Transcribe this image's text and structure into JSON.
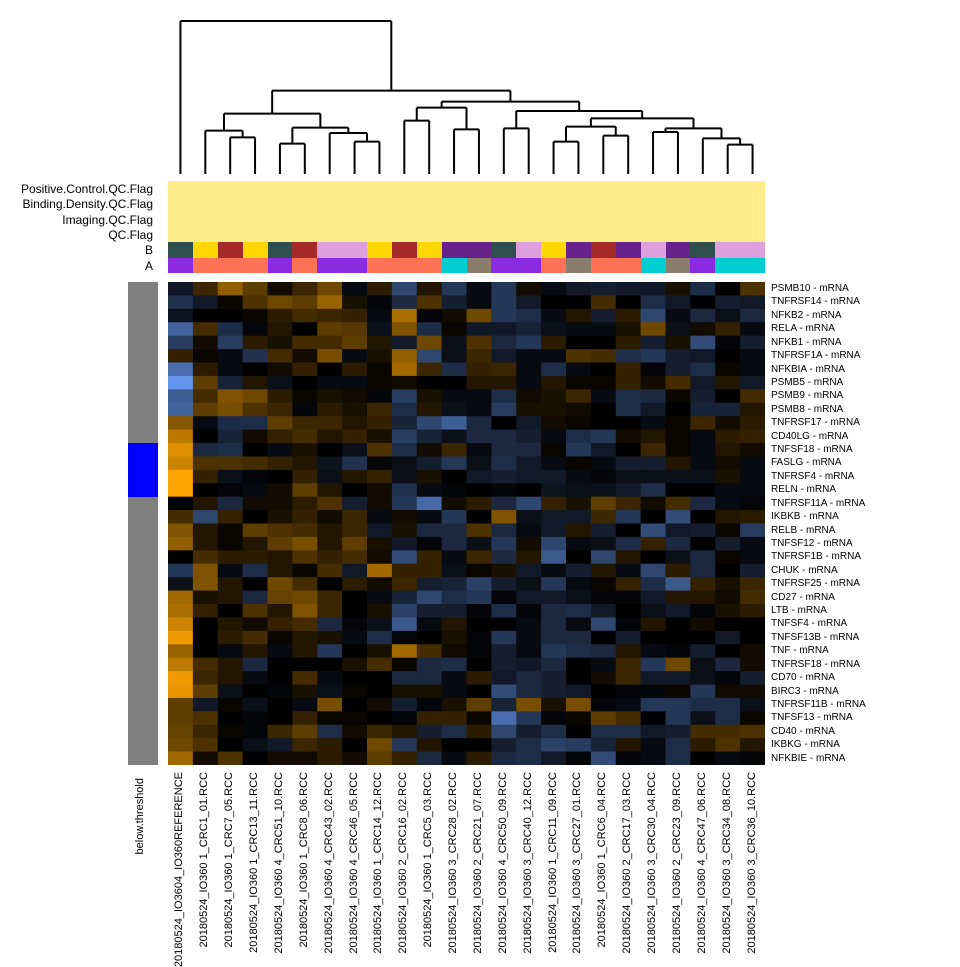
{
  "chart_data": {
    "type": "heatmap",
    "color_scale": {
      "low": "#6495ED",
      "mid": "#000000",
      "high": "#FFA500",
      "range": [
        -3,
        3
      ]
    },
    "columns": [
      "20180524_IO3604_IO360REFERENCE",
      "20180524_IO360 1_CRC1_01.RCC",
      "20180524_IO360 1_CRC7_05.RCC",
      "20180524_IO360 1_CRC13_11.RCC",
      "20180524_IO360 4_CRC51_10.RCC",
      "20180524_IO360 1_CRC8_06.RCC",
      "20180524_IO360 4_CRC43_02.RCC",
      "20180524_IO360 4_CRC46_05.RCC",
      "20180524_IO360 1_CRC14_12.RCC",
      "20180524_IO360 2_CRC16_02.RCC",
      "20180524_IO360 1_CRC5_03.RCC",
      "20180524_IO360 3_CRC28_02.RCC",
      "20180524_IO360 2_CRC21_07.RCC",
      "20180524_IO360 4_CRC50_09.RCC",
      "20180524_IO360 3_CRC40_12.RCC",
      "20180524_IO360 1_CRC11_09.RCC",
      "20180524_IO360 3_CRC27_01.RCC",
      "20180524_IO360 1_CRC6_04.RCC",
      "20180524_IO360 2_CRC17_03.RCC",
      "20180524_IO360 3_CRC30_04.RCC",
      "20180524_IO360 2_CRC23_09.RCC",
      "20180524_IO360 4_CRC47_06.RCC",
      "20180524_IO360 3_CRC34_08.RCC",
      "20180524_IO360 3_CRC36_10.RCC"
    ],
    "rows": [
      "PSMB10 - mRNA",
      "TNFRSF14 - mRNA",
      "NFKB2 - mRNA",
      "RELA - mRNA",
      "NFKB1 - mRNA",
      "TNFRSF1A - mRNA",
      "NFKBIA - mRNA",
      "PSMB5 - mRNA",
      "PSMB9 - mRNA",
      "PSMB8 - mRNA",
      "TNFRSF17 - mRNA",
      "CD40LG - mRNA",
      "TNFSF18 - mRNA",
      "FASLG - mRNA",
      "TNFRSF4 - mRNA",
      "RELN - mRNA",
      "TNFRSF11A - mRNA",
      "IKBKB - mRNA",
      "RELB - mRNA",
      "TNFSF12 - mRNA",
      "TNFRSF1B - mRNA",
      "CHUK - mRNA",
      "TNFRSF25 - mRNA",
      "CD27 - mRNA",
      "LTB - mRNA",
      "TNFSF4 - mRNA",
      "TNFSF13B - mRNA",
      "TNF - mRNA",
      "TNFRSF18 - mRNA",
      "CD70 - mRNA",
      "BIRC3 - mRNA",
      "TNFRSF11B - mRNA",
      "TNFSF13 - mRNA",
      "CD40 - mRNA",
      "IKBKG - mRNA",
      "NFKBIE - mRNA"
    ],
    "values": [
      [
        -0.5,
        0.7,
        1.7,
        1.1,
        0.2,
        0.7,
        1.3,
        -0.2,
        0.5,
        -1.4,
        0.4,
        -1.1,
        -0.2,
        -1.1,
        0.2,
        -0.2,
        -0.5,
        -0.6,
        -0.5,
        -0.5,
        0.3,
        -0.9,
        0,
        0.9
      ],
      [
        -1.0,
        -0.5,
        0.1,
        0.9,
        1.3,
        1.1,
        1.8,
        0.3,
        -0.1,
        -0.8,
        0.9,
        -0.6,
        -0.2,
        -1.1,
        -0.5,
        0,
        0,
        0.8,
        0,
        -0.9,
        -0.5,
        0,
        -0.6,
        -0.5
      ],
      [
        -0.4,
        0,
        0,
        0.1,
        0.5,
        0.8,
        0.7,
        0.6,
        -0.2,
        2.0,
        -0.1,
        0.2,
        1.3,
        -1.1,
        -0.9,
        -0.2,
        0.4,
        -0.6,
        0.5,
        -1.4,
        -0.2,
        -0.8,
        -0.3,
        -0.8
      ],
      [
        -2.0,
        0.8,
        -0.9,
        -0.1,
        0.4,
        0,
        1.1,
        1.0,
        -0.3,
        1.5,
        -0.9,
        0.1,
        -0.5,
        -0.5,
        -0.7,
        -0.3,
        -0.2,
        -0.2,
        0.3,
        1.3,
        -0.3,
        0.2,
        0.6,
        -0.2
      ],
      [
        -1.2,
        0.2,
        -1.2,
        0.5,
        0.3,
        0.8,
        0.8,
        1.1,
        0.4,
        -0.5,
        1.3,
        -0.3,
        0.9,
        -0.8,
        -1.1,
        0.5,
        0,
        0,
        0.5,
        -0.6,
        0.3,
        -1.5,
        -0.1,
        -0.6
      ],
      [
        0.6,
        0.1,
        -0.2,
        -1.0,
        0.8,
        0.2,
        1.4,
        -0.2,
        0.3,
        1.7,
        -1.4,
        -0.3,
        0.7,
        -0.5,
        -0.2,
        -0.2,
        0.9,
        0.8,
        -0.9,
        -1.1,
        -0.6,
        -0.5,
        0,
        -0.2
      ],
      [
        -2.2,
        0.5,
        -0.2,
        0,
        0.2,
        0.6,
        0,
        0.5,
        0.1,
        1.9,
        0.7,
        -0.9,
        0.6,
        0.7,
        -0.2,
        -0.9,
        -0.2,
        0,
        0.6,
        -0.1,
        -0.6,
        -0.9,
        0.1,
        -0.2
      ],
      [
        -3.0,
        1.1,
        -0.7,
        0.4,
        -0.3,
        0,
        -0.2,
        -0.2,
        0.1,
        0.2,
        0,
        0,
        0.4,
        0.4,
        -0.2,
        0.4,
        0.1,
        0.1,
        0.6,
        0.2,
        0.8,
        -0.5,
        0.4,
        -0.5
      ],
      [
        -1.9,
        0.8,
        1.5,
        1.3,
        0.5,
        0.1,
        0.3,
        0.2,
        -0.1,
        -1.2,
        0.3,
        -0.2,
        -0.2,
        -0.9,
        0.2,
        0.3,
        0.7,
        -0.2,
        -0.9,
        -0.8,
        0.1,
        -0.6,
        0,
        0.8
      ],
      [
        -2.0,
        1.1,
        1.4,
        0.9,
        0.7,
        -0.1,
        0.5,
        0.3,
        0.7,
        -0.9,
        0.4,
        -0.3,
        -0.2,
        -1.2,
        0.3,
        0.3,
        0.2,
        0,
        -0.9,
        -0.5,
        0,
        -0.7,
        -0.7,
        0.4
      ],
      [
        1.6,
        -0.2,
        -0.9,
        -0.9,
        1.1,
        0.7,
        0.7,
        0.4,
        0.6,
        -0.7,
        -1.4,
        -1.9,
        -0.8,
        0,
        -0.5,
        0.2,
        0.1,
        0,
        0,
        -0.2,
        0.1,
        0.7,
        0.2,
        0.5
      ],
      [
        2.2,
        0,
        -0.7,
        0.2,
        0.6,
        0.8,
        0.4,
        0.6,
        0.3,
        -1.2,
        -0.7,
        -0.3,
        -0.8,
        -0.8,
        -0.6,
        -0.2,
        -0.9,
        -1.1,
        0.2,
        0.4,
        0.1,
        -0.2,
        0.5,
        0.6
      ],
      [
        2.6,
        -0.8,
        -0.9,
        0,
        -0.2,
        0.3,
        0,
        -0.3,
        0.9,
        -0.9,
        0.2,
        0.7,
        -0.2,
        -0.8,
        -0.8,
        0.1,
        -1.1,
        -0.5,
        0,
        0.7,
        0.1,
        -0.2,
        0.4,
        0.2
      ],
      [
        2.4,
        0.9,
        0.9,
        0.8,
        0.6,
        0.4,
        -0.4,
        -1.0,
        -0.1,
        -0.3,
        -0.6,
        -1.1,
        -0.3,
        -0.9,
        -0.5,
        -0.2,
        0.1,
        -0.2,
        -0.6,
        -0.6,
        0.4,
        -0.2,
        0.2,
        -0.2
      ],
      [
        3.0,
        0.6,
        -0.3,
        -0.1,
        0,
        0.6,
        -0.3,
        0.4,
        0.6,
        -0.3,
        0.3,
        0,
        -0.5,
        -0.6,
        -0.5,
        -0.5,
        -0.2,
        -0.1,
        -0.3,
        -0.3,
        -0.3,
        -0.3,
        0.3,
        -0.2
      ],
      [
        3.0,
        0,
        -0.1,
        -0.2,
        0.2,
        1.1,
        0.4,
        0,
        0.2,
        -1.0,
        -0.2,
        -0.1,
        0,
        -0.1,
        0,
        -0.4,
        -0.3,
        -0.3,
        -0.5,
        -0.9,
        0,
        0,
        -0.2,
        -0.2
      ],
      [
        0,
        0.4,
        -0.8,
        0.2,
        0.2,
        0.5,
        0.9,
        -0.6,
        0.2,
        -1.1,
        -2.1,
        0.2,
        0.5,
        -0.8,
        -1.4,
        0.6,
        0.3,
        1.1,
        0.7,
        0.2,
        0.8,
        -0.8,
        -0.2,
        -0.1
      ],
      [
        0.8,
        -1.4,
        0.6,
        0,
        0.3,
        0.6,
        0.2,
        0.7,
        -0.2,
        0.2,
        -0.2,
        -1.1,
        0,
        1.5,
        -0.3,
        -0.5,
        -0.5,
        0.7,
        -1.1,
        0,
        -1.5,
        0,
        0.4,
        0.5
      ],
      [
        1.5,
        0.4,
        0.1,
        1.1,
        0.9,
        0.8,
        0.4,
        0.7,
        -0.5,
        0.3,
        -0.8,
        -0.8,
        0.9,
        -0.8,
        -0.2,
        -0.5,
        0.4,
        -0.6,
        0,
        -1.5,
        -0.5,
        -0.6,
        0.1,
        -1.2
      ],
      [
        1.7,
        0.4,
        0.1,
        0.4,
        1.1,
        1.4,
        0.4,
        1.1,
        0.3,
        -0.5,
        -0.1,
        -0.8,
        -0.3,
        -1.1,
        0.2,
        -1.4,
        -0.2,
        -0.3,
        -0.9,
        0.6,
        -0.8,
        0,
        -0.6,
        -0.2
      ],
      [
        0,
        0.8,
        0.5,
        0.5,
        0.4,
        0.9,
        0.6,
        0.8,
        0.2,
        -1.5,
        0.6,
        -0.2,
        0.7,
        -0.8,
        0.4,
        -1.8,
        0,
        -1.4,
        0.4,
        0,
        -0.3,
        -0.8,
        0.1,
        -0.2
      ],
      [
        -1.1,
        1.5,
        -0.2,
        -0.9,
        0.4,
        0.1,
        0.8,
        -0.5,
        1.9,
        0.6,
        0.6,
        -0.3,
        0.1,
        0.3,
        -0.5,
        -0.2,
        -0.6,
        0.4,
        -0.2,
        -1.4,
        0.5,
        -0.8,
        0,
        -0.6
      ],
      [
        -0.3,
        1.5,
        0.4,
        0,
        1.3,
        0.8,
        0,
        0.5,
        0.2,
        0.7,
        -0.6,
        -0.7,
        -1.3,
        -0.6,
        -0.3,
        -1.1,
        -0.2,
        0.1,
        0.6,
        -0.9,
        -1.8,
        0.6,
        0.3,
        0.7
      ],
      [
        1.9,
        0.3,
        0.4,
        -0.8,
        1.2,
        1.3,
        0.7,
        0,
        -0.2,
        -0.7,
        -1.4,
        -0.9,
        -1.1,
        -0.1,
        -0.5,
        -0.5,
        -0.3,
        -0.1,
        -0.1,
        -0.5,
        0.4,
        0.4,
        0.2,
        0.8
      ],
      [
        2.0,
        0.6,
        0,
        0.9,
        0.4,
        1.5,
        0.7,
        0,
        0.3,
        -1.3,
        -0.6,
        -0.6,
        -0.1,
        -0.9,
        -0.1,
        -0.8,
        -0.9,
        -0.5,
        0,
        -0.3,
        -0.5,
        -0.1,
        0.3,
        0.5
      ],
      [
        2.4,
        0,
        0.4,
        0.2,
        0.6,
        0.8,
        -0.8,
        -0.1,
        -0.3,
        -1.8,
        -0.2,
        0.4,
        0,
        0,
        -0.2,
        -0.8,
        -0.2,
        -1.4,
        -0.1,
        0.4,
        0,
        0.2,
        0,
        0
      ],
      [
        2.8,
        0,
        0.5,
        0.8,
        0.1,
        0.4,
        0.3,
        -0.2,
        -0.9,
        -0.1,
        0,
        0.3,
        -0.1,
        -1.1,
        -0.2,
        -0.8,
        -0.8,
        0,
        -0.6,
        0,
        0,
        0,
        -0.5,
        0
      ],
      [
        1.8,
        0,
        -0.2,
        0.4,
        -0.2,
        0.4,
        -1.1,
        0,
        0.3,
        1.9,
        0.8,
        0.2,
        -0.1,
        -0.6,
        -0.2,
        -1.1,
        -0.9,
        -0.8,
        0.4,
        -0.2,
        -0.1,
        -0.6,
        0,
        0.2
      ],
      [
        2.2,
        0.8,
        0.4,
        -0.8,
        0,
        0,
        0,
        0.3,
        0.8,
        0.1,
        -0.8,
        -0.9,
        0,
        -0.6,
        -0.5,
        -0.8,
        0,
        -0.2,
        0.7,
        -1.1,
        1.3,
        -0.3,
        -0.8,
        0.2
      ],
      [
        2.8,
        0.7,
        0.4,
        -0.2,
        0,
        0.8,
        -0.2,
        0,
        0,
        -0.8,
        -0.8,
        -0.2,
        0.5,
        -0.5,
        -0.8,
        -0.6,
        0,
        0.2,
        0.7,
        -0.5,
        -0.5,
        -0.3,
        -0.1,
        -0.6
      ],
      [
        2.7,
        1.1,
        -0.3,
        0,
        -0.1,
        0.3,
        -0.3,
        0.1,
        0,
        0.3,
        0.3,
        -0.2,
        0,
        -1.5,
        -0.8,
        -0.6,
        -0.5,
        0,
        -0.1,
        -0.1,
        0.1,
        -1.1,
        0.2,
        0.2
      ],
      [
        1.1,
        -0.5,
        0.1,
        -0.3,
        0,
        -0.2,
        1.4,
        0,
        0.2,
        -0.6,
        -0.1,
        0.3,
        1.1,
        -0.7,
        1.4,
        0.3,
        1.4,
        -0.1,
        -0.2,
        -1.1,
        -1.1,
        -0.9,
        -0.9,
        -0.3
      ],
      [
        1.1,
        0.9,
        0,
        -0.1,
        0,
        0.6,
        0.1,
        0.1,
        0,
        -0.1,
        0.6,
        0.6,
        0.1,
        -2.2,
        -1.1,
        -0.1,
        0.1,
        1.1,
        0.8,
        0,
        -1.1,
        -0.3,
        -0.9,
        0.1
      ],
      [
        1.2,
        0.7,
        0.1,
        -0.1,
        0.7,
        1.1,
        -0.9,
        0.2,
        0.7,
        0.4,
        -0.6,
        -0.9,
        0.5,
        -1.4,
        -0.6,
        -0.9,
        0,
        -0.9,
        -0.9,
        -0.5,
        -0.6,
        0.8,
        0.8,
        0.9
      ],
      [
        1.3,
        0.9,
        0,
        -0.3,
        -0.5,
        0.7,
        0.5,
        0,
        1.3,
        -1.1,
        0.4,
        0,
        0,
        -0.6,
        -0.9,
        -1.3,
        -1.2,
        -0.7,
        0.4,
        -0.2,
        -0.9,
        0.5,
        0.9,
        0.4
      ],
      [
        1.9,
        0.2,
        0.9,
        0,
        0.2,
        0.2,
        0.5,
        0.2,
        1.1,
        0.6,
        -0.8,
        -0.2,
        0.5,
        -0.8,
        -0.9,
        -0.5,
        -0.1,
        -1.5,
        -0.1,
        -0.2,
        -0.9,
        0,
        -0.2,
        -0.1
      ]
    ],
    "column_annotations": {
      "labels": [
        "Positive.Control.QC.Flag",
        "Binding.Density.QC.Flag",
        "Imaging.QC.Flag",
        "QC.Flag",
        "B",
        "A"
      ],
      "flag_color": "#FFEC8B",
      "B": [
        "#2F4F4F",
        "#FFD700",
        "#A52A2A",
        "#FFD700",
        "#2F4F4F",
        "#A52A2A",
        "#DDA0DD",
        "#DDA0DD",
        "#FFD700",
        "#A52A2A",
        "#FFD700",
        "#68228B",
        "#68228B",
        "#2F4F4F",
        "#DDA0DD",
        "#FFD700",
        "#68228B",
        "#A52A2A",
        "#68228B",
        "#DDA0DD",
        "#68228B",
        "#2F4F4F",
        "#DDA0DD",
        "#DDA0DD"
      ],
      "A": [
        "#8A2BE2",
        "#FF7256",
        "#FF7256",
        "#FF7256",
        "#8A2BE2",
        "#FF7256",
        "#8A2BE2",
        "#8A2BE2",
        "#FF7256",
        "#FF7256",
        "#FF7256",
        "#00CED1",
        "#8B7D6B",
        "#8A2BE2",
        "#8A2BE2",
        "#FF7256",
        "#8B7D6B",
        "#FF7256",
        "#FF7256",
        "#00CED1",
        "#8B7D6B",
        "#8A2BE2",
        "#00CED1",
        "#00CED1"
      ]
    },
    "row_annotation": {
      "label": "below.threshold",
      "colors": {
        "false": "#808080",
        "true": "#0000FF"
      },
      "values": [
        false,
        false,
        false,
        false,
        false,
        false,
        false,
        false,
        false,
        false,
        false,
        false,
        true,
        true,
        true,
        true,
        false,
        false,
        false,
        false,
        false,
        false,
        false,
        false,
        false,
        false,
        false,
        false,
        false,
        false,
        false,
        false,
        false,
        false,
        false,
        false
      ]
    },
    "column_dendrogram": true
  }
}
